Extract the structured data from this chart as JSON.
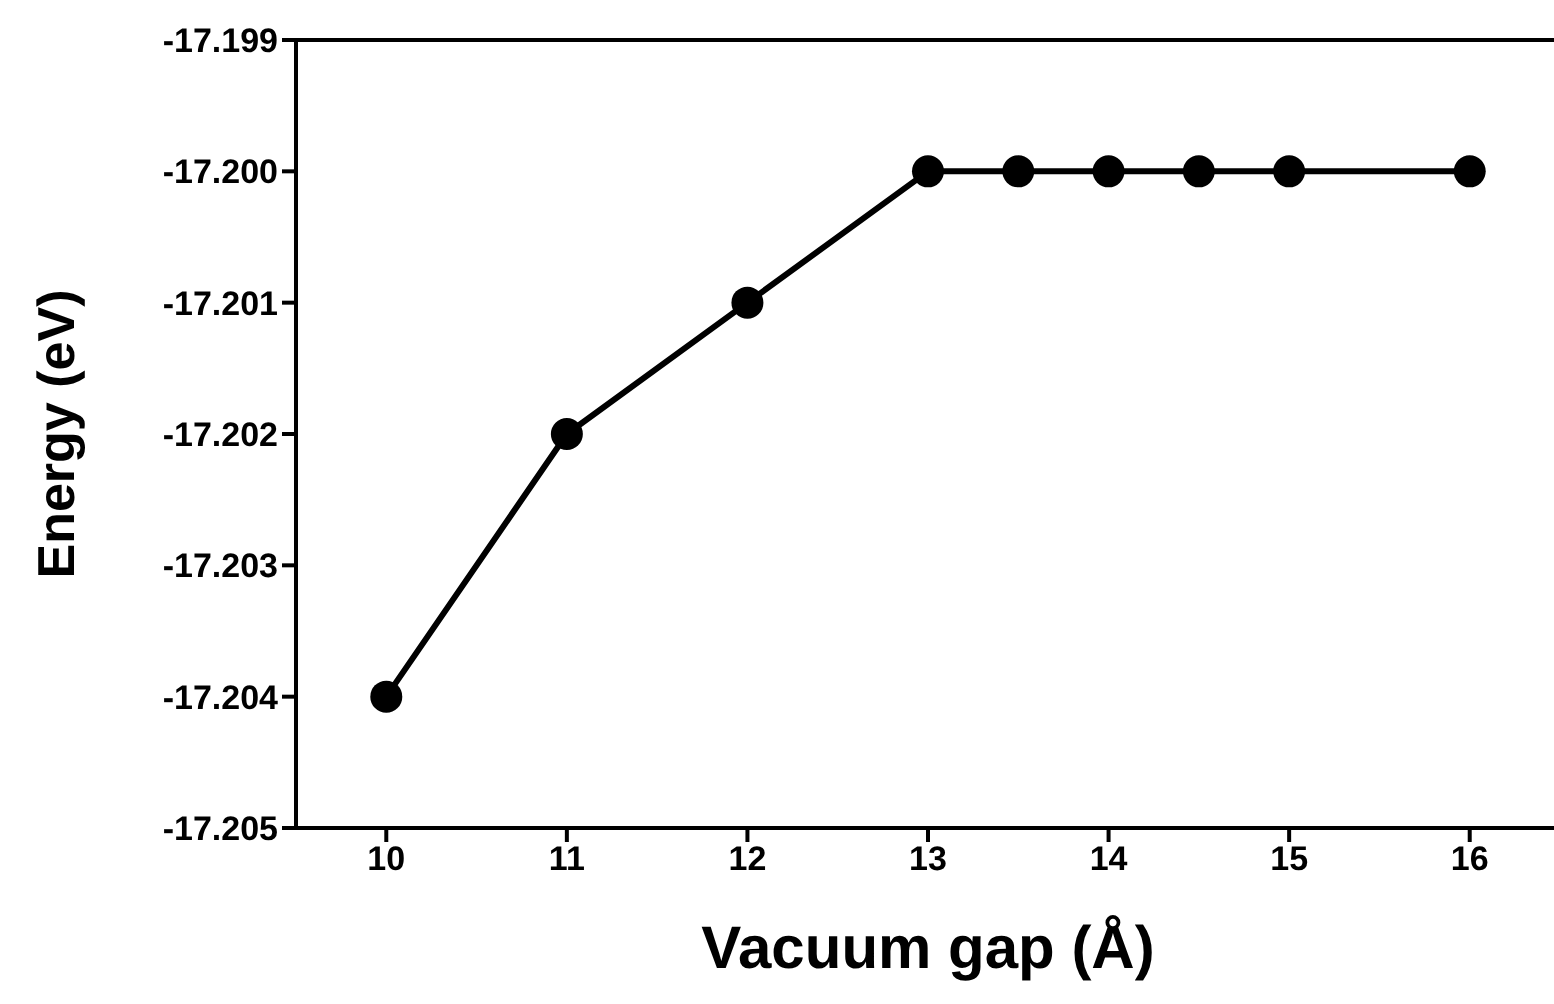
{
  "chart_data": {
    "type": "line",
    "xlabel": "Vacuum gap (Å)",
    "ylabel": "Energy (eV)",
    "x": [
      10,
      11,
      12,
      13,
      13.5,
      14,
      14.5,
      15,
      16
    ],
    "series": [
      {
        "color": "#000000",
        "values": [
          -17.204,
          -17.202,
          -17.201,
          -17.2,
          -17.2,
          -17.2,
          -17.2,
          -17.2,
          -17.2
        ]
      }
    ],
    "xlim": [
      9.5,
      16.5
    ],
    "xticks": [
      10,
      11,
      12,
      13,
      14,
      15,
      16
    ],
    "ylim": [
      -17.205,
      -17.199
    ],
    "yticks": [
      -17.205,
      -17.204,
      -17.203,
      -17.202,
      -17.201,
      {
        "value": -17.2,
        "label": "-17.200"
      },
      -17.199
    ],
    "marker": "circle",
    "line_style": "solid"
  }
}
